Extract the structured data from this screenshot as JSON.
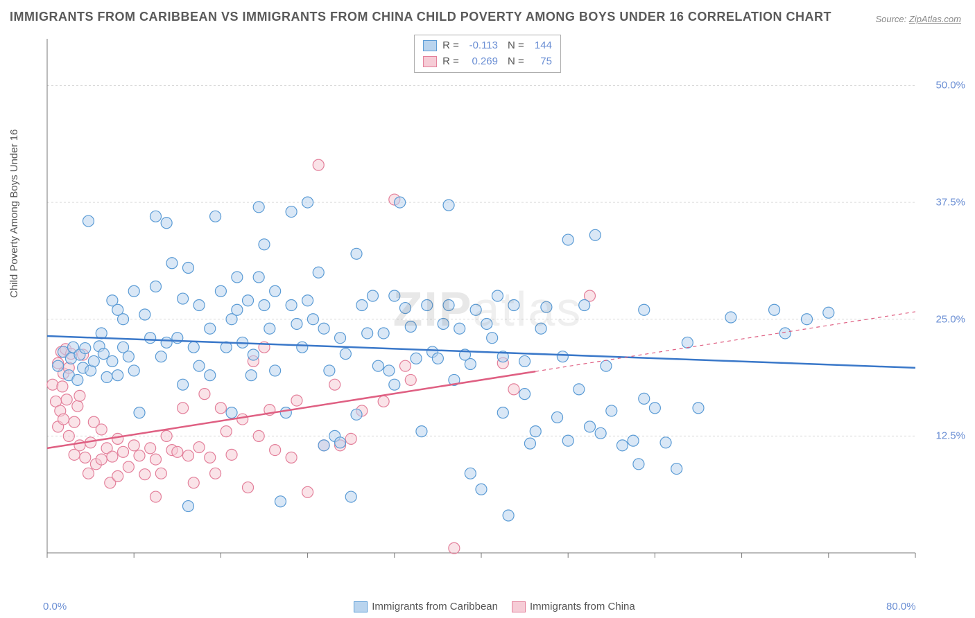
{
  "title": "IMMIGRANTS FROM CARIBBEAN VS IMMIGRANTS FROM CHINA CHILD POVERTY AMONG BOYS UNDER 16 CORRELATION CHART",
  "source_prefix": "Source: ",
  "source_name": "ZipAtlas.com",
  "watermark": "ZIPatlas",
  "ylabel": "Child Poverty Among Boys Under 16",
  "chart": {
    "type": "scatter",
    "xlim": [
      0,
      80
    ],
    "ylim": [
      0,
      55
    ],
    "x_tick_labels": {
      "0": "0.0%",
      "80": "80.0%"
    },
    "y_tick_labels": {
      "12.5": "12.5%",
      "25": "25.0%",
      "37.5": "37.5%",
      "50": "50.0%"
    },
    "x_minor_ticks": [
      0,
      8,
      16,
      24,
      32,
      40,
      48,
      56,
      64,
      72,
      80
    ],
    "grid_color": "#d9d9d9",
    "axis_color": "#777",
    "background_color": "#ffffff",
    "marker_radius": 8,
    "marker_stroke_width": 1.2,
    "line_width": 2.5,
    "series": [
      {
        "name": "Immigrants from Caribbean",
        "fill": "#b9d4ee",
        "stroke": "#5a9bd5",
        "line_color": "#3a78c9",
        "R": "-0.113",
        "N": "144",
        "trend": {
          "x1": 0,
          "y1": 23.2,
          "x2": 80,
          "y2": 19.8,
          "solid_until": 80
        },
        "points": [
          [
            1,
            20
          ],
          [
            1.5,
            21.5
          ],
          [
            2,
            19
          ],
          [
            2.2,
            20.8
          ],
          [
            2.4,
            22
          ],
          [
            2.8,
            18.5
          ],
          [
            3,
            21.2
          ],
          [
            3.3,
            19.8
          ],
          [
            3.5,
            21.9
          ],
          [
            3.8,
            35.5
          ],
          [
            4,
            19.5
          ],
          [
            4.3,
            20.5
          ],
          [
            4.8,
            22.1
          ],
          [
            5,
            23.5
          ],
          [
            5.2,
            21.3
          ],
          [
            5.5,
            18.8
          ],
          [
            6,
            20.5
          ],
          [
            6,
            27
          ],
          [
            6.5,
            19
          ],
          [
            6.5,
            26
          ],
          [
            7,
            22
          ],
          [
            7,
            25
          ],
          [
            7.5,
            21
          ],
          [
            8,
            28
          ],
          [
            8,
            19.5
          ],
          [
            8.5,
            15
          ],
          [
            9,
            25.5
          ],
          [
            9.5,
            23
          ],
          [
            10,
            28.5
          ],
          [
            10,
            36
          ],
          [
            10.5,
            21
          ],
          [
            11,
            22.5
          ],
          [
            11,
            35.3
          ],
          [
            11.5,
            31
          ],
          [
            12,
            23
          ],
          [
            12.5,
            18
          ],
          [
            12.5,
            27.2
          ],
          [
            13,
            5
          ],
          [
            13,
            30.5
          ],
          [
            13.5,
            22
          ],
          [
            14,
            20
          ],
          [
            14,
            26.5
          ],
          [
            15,
            19
          ],
          [
            15,
            24
          ],
          [
            15.5,
            36
          ],
          [
            16,
            28
          ],
          [
            16.5,
            22
          ],
          [
            17,
            25
          ],
          [
            17,
            15
          ],
          [
            17.5,
            26
          ],
          [
            17.5,
            29.5
          ],
          [
            18,
            22.5
          ],
          [
            18.5,
            27
          ],
          [
            18.8,
            19
          ],
          [
            19,
            21.2
          ],
          [
            19.5,
            37
          ],
          [
            19.5,
            29.5
          ],
          [
            20,
            33
          ],
          [
            20,
            26.5
          ],
          [
            20.5,
            24
          ],
          [
            21,
            28
          ],
          [
            21,
            19.5
          ],
          [
            21.5,
            5.5
          ],
          [
            22,
            15
          ],
          [
            22.5,
            36.5
          ],
          [
            22.5,
            26.5
          ],
          [
            23,
            24.5
          ],
          [
            23.5,
            22
          ],
          [
            24,
            27
          ],
          [
            24,
            37.5
          ],
          [
            24.5,
            25
          ],
          [
            25,
            30
          ],
          [
            25.5,
            11.5
          ],
          [
            25.5,
            24
          ],
          [
            26,
            19.5
          ],
          [
            26.5,
            12.5
          ],
          [
            27,
            11.8
          ],
          [
            27,
            23
          ],
          [
            27.5,
            21.3
          ],
          [
            28,
            6
          ],
          [
            28.5,
            14.8
          ],
          [
            28.5,
            32
          ],
          [
            29,
            26.5
          ],
          [
            29.5,
            23.5
          ],
          [
            30,
            27.5
          ],
          [
            30.5,
            20
          ],
          [
            31,
            23.5
          ],
          [
            31.5,
            19.5
          ],
          [
            32,
            27.5
          ],
          [
            32,
            18
          ],
          [
            32.5,
            37.5
          ],
          [
            33,
            26.2
          ],
          [
            33.5,
            24.2
          ],
          [
            34,
            20.8
          ],
          [
            34.5,
            13
          ],
          [
            35,
            26.5
          ],
          [
            35.5,
            21.5
          ],
          [
            36,
            20.8
          ],
          [
            36.5,
            24.5
          ],
          [
            37,
            26.5
          ],
          [
            37,
            37.2
          ],
          [
            37.5,
            18.5
          ],
          [
            38,
            24
          ],
          [
            38.5,
            21.2
          ],
          [
            39,
            8.5
          ],
          [
            39,
            20.2
          ],
          [
            39.5,
            26
          ],
          [
            40,
            6.8
          ],
          [
            40.5,
            24.5
          ],
          [
            41,
            23
          ],
          [
            41.5,
            27.5
          ],
          [
            42,
            15
          ],
          [
            42,
            21
          ],
          [
            42.5,
            4
          ],
          [
            43,
            26.5
          ],
          [
            44,
            17
          ],
          [
            44,
            20.5
          ],
          [
            44.5,
            11.7
          ],
          [
            45,
            13
          ],
          [
            45.5,
            24
          ],
          [
            46,
            26.3
          ],
          [
            47,
            14.5
          ],
          [
            47.5,
            21
          ],
          [
            48,
            12
          ],
          [
            48,
            33.5
          ],
          [
            49,
            17.5
          ],
          [
            49.5,
            26.5
          ],
          [
            50,
            13.5
          ],
          [
            50.5,
            34
          ],
          [
            51,
            12.8
          ],
          [
            51.5,
            20
          ],
          [
            52,
            15.2
          ],
          [
            53,
            11.5
          ],
          [
            54,
            12
          ],
          [
            54.5,
            9.5
          ],
          [
            55,
            16.5
          ],
          [
            55,
            26
          ],
          [
            56,
            15.5
          ],
          [
            57,
            11.8
          ],
          [
            58,
            9
          ],
          [
            59,
            22.5
          ],
          [
            60,
            15.5
          ],
          [
            63,
            25.2
          ],
          [
            67,
            26
          ],
          [
            68,
            23.5
          ],
          [
            70,
            25
          ],
          [
            72,
            25.7
          ]
        ]
      },
      {
        "name": "Immigrants from China",
        "fill": "#f6ccd6",
        "stroke": "#e37f9a",
        "line_color": "#df5f82",
        "R": "0.269",
        "N": "75",
        "trend": {
          "x1": 0,
          "y1": 11.2,
          "x2": 80,
          "y2": 25.8,
          "solid_until": 45
        },
        "points": [
          [
            0.5,
            18
          ],
          [
            0.8,
            16.2
          ],
          [
            1,
            13.5
          ],
          [
            1,
            20.3
          ],
          [
            1.2,
            15.2
          ],
          [
            1.3,
            21.5
          ],
          [
            1.4,
            17.8
          ],
          [
            1.5,
            19.2
          ],
          [
            1.5,
            14.3
          ],
          [
            1.7,
            21.8
          ],
          [
            1.8,
            16.4
          ],
          [
            2,
            19.8
          ],
          [
            2,
            12.5
          ],
          [
            2.2,
            21.3
          ],
          [
            2.5,
            14
          ],
          [
            2.5,
            10.5
          ],
          [
            2.8,
            15.7
          ],
          [
            3,
            11.5
          ],
          [
            3,
            16.8
          ],
          [
            3.3,
            21.2
          ],
          [
            3.5,
            10.2
          ],
          [
            3.8,
            8.5
          ],
          [
            4,
            11.8
          ],
          [
            4.3,
            14
          ],
          [
            4.5,
            9.5
          ],
          [
            5,
            13.2
          ],
          [
            5,
            10
          ],
          [
            5.5,
            11.2
          ],
          [
            5.8,
            7.5
          ],
          [
            6,
            10.3
          ],
          [
            6.5,
            12.2
          ],
          [
            6.5,
            8.2
          ],
          [
            7,
            10.8
          ],
          [
            7.5,
            9.2
          ],
          [
            8,
            11.5
          ],
          [
            8.5,
            10.4
          ],
          [
            9,
            8.4
          ],
          [
            9.5,
            11.2
          ],
          [
            10,
            10
          ],
          [
            10,
            6
          ],
          [
            10.5,
            8.5
          ],
          [
            11,
            12.5
          ],
          [
            11.5,
            11
          ],
          [
            12,
            10.8
          ],
          [
            12.5,
            15.5
          ],
          [
            13,
            10.4
          ],
          [
            13.5,
            7.5
          ],
          [
            14,
            11.3
          ],
          [
            14.5,
            17
          ],
          [
            15,
            10.2
          ],
          [
            15.5,
            8.5
          ],
          [
            16,
            15.5
          ],
          [
            16.5,
            13
          ],
          [
            17,
            10.5
          ],
          [
            18,
            14.3
          ],
          [
            18.5,
            7
          ],
          [
            19,
            20.5
          ],
          [
            19.5,
            12.5
          ],
          [
            20,
            22
          ],
          [
            20.5,
            15.3
          ],
          [
            21,
            11
          ],
          [
            22.5,
            10.2
          ],
          [
            23,
            16.3
          ],
          [
            24,
            6.5
          ],
          [
            25,
            41.5
          ],
          [
            25.5,
            11.5
          ],
          [
            26.5,
            18
          ],
          [
            27,
            11.5
          ],
          [
            28,
            12.2
          ],
          [
            29,
            15.2
          ],
          [
            31,
            16.2
          ],
          [
            32,
            37.8
          ],
          [
            33,
            20
          ],
          [
            33.5,
            18.5
          ],
          [
            37.5,
            0.5
          ],
          [
            42,
            20.3
          ],
          [
            43,
            17.5
          ],
          [
            50,
            27.5
          ]
        ]
      }
    ]
  },
  "stats_box": {
    "R_label": "R =",
    "N_label": "N ="
  },
  "bottom_legend": {
    "items": [
      "Immigrants from Caribbean",
      "Immigrants from China"
    ]
  }
}
